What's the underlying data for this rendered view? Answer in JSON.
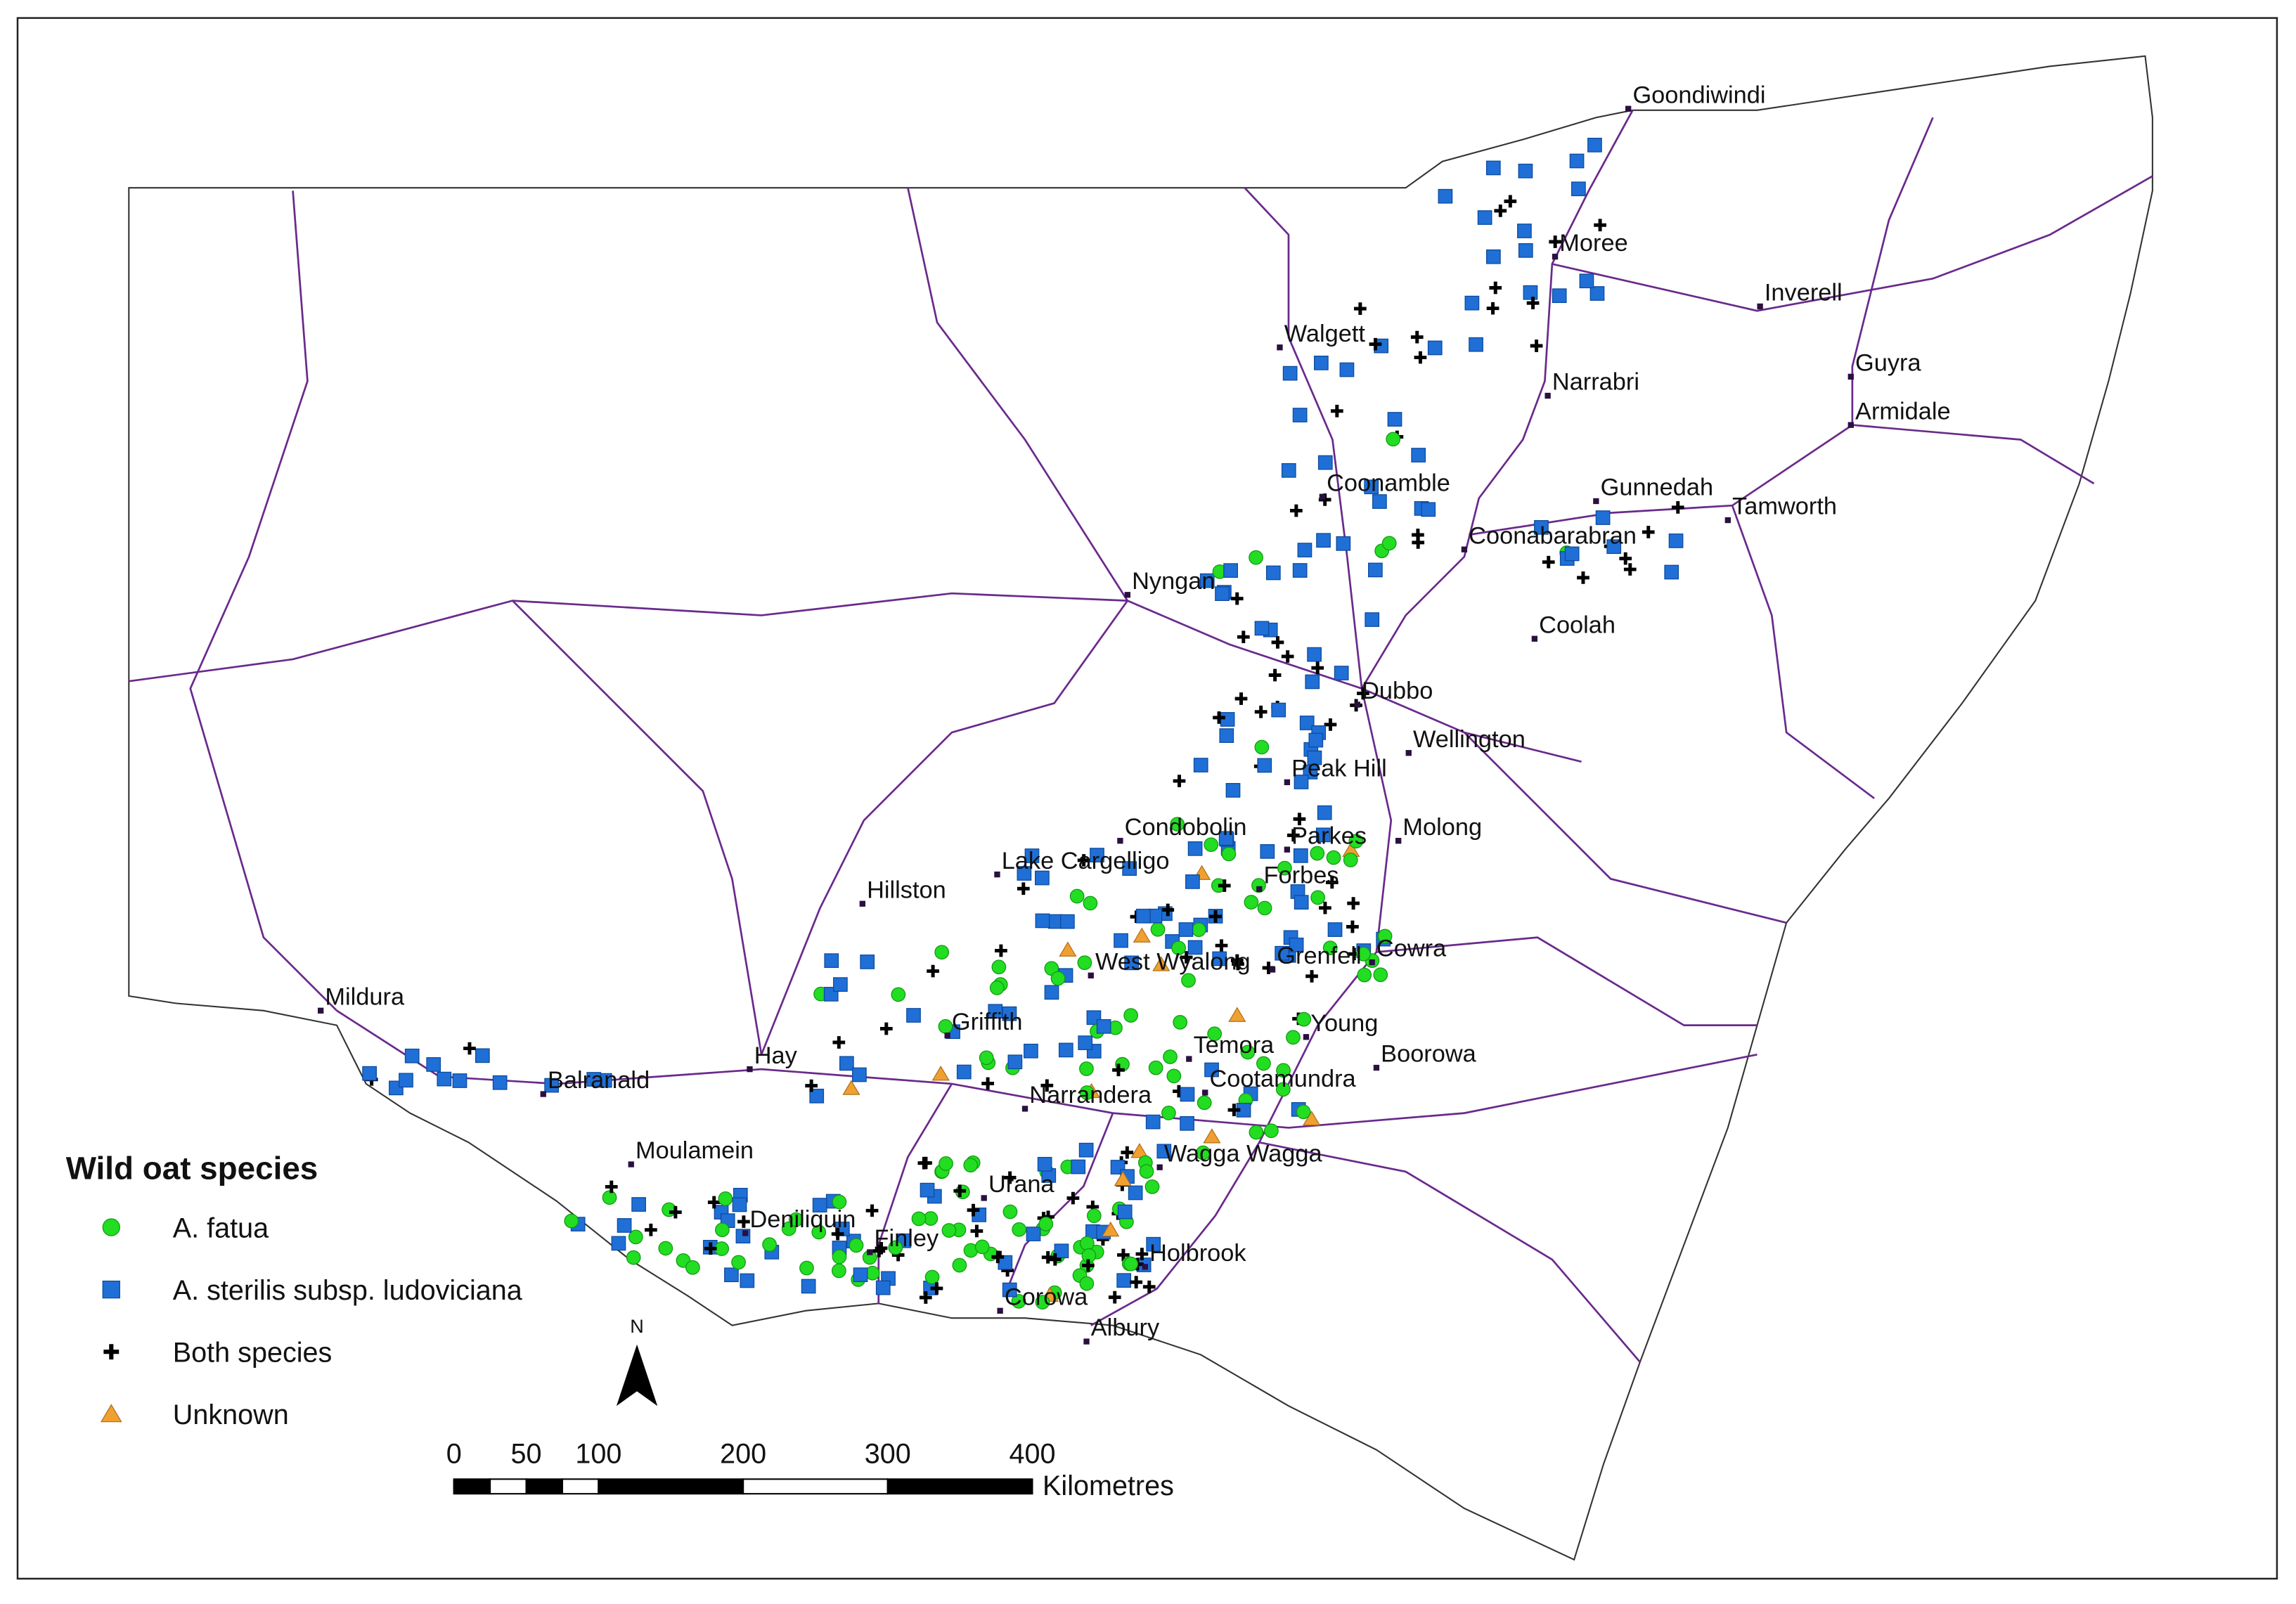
{
  "map": {
    "legend": {
      "title": "Wild oat species",
      "entries": [
        "A. fatua",
        "A. sterilis subsp. ludoviciana",
        "Both species",
        "Unknown"
      ]
    },
    "towns": [
      "Goondiwindi",
      "Moree",
      "Inverell",
      "Walgett",
      "Guyra",
      "Narrabri",
      "Armidale",
      "Coonamble",
      "Gunnedah",
      "Tamworth",
      "Coonabarabran",
      "Nyngan",
      "Coolah",
      "Dubbo",
      "Wellington",
      "Peak Hill",
      "Condobolin",
      "Molong",
      "Parkes",
      "Lake Cargelligo",
      "Forbes",
      "Hillston",
      "Cowra",
      "West Wyalong",
      "Grenfell",
      "Mildura",
      "Griffith",
      "Young",
      "Hay",
      "Temora",
      "Boorowa",
      "Balranald",
      "Cootamundra",
      "Narrandera",
      "Moulamein",
      "Wagga Wagga",
      "Deniliquin",
      "Urana",
      "Finley",
      "Holbrook",
      "Corowa",
      "Albury"
    ],
    "north_label": "N",
    "scale_bar": {
      "ticks": [
        0,
        50,
        100,
        200,
        300,
        400
      ],
      "unit": "Kilometres"
    }
  }
}
